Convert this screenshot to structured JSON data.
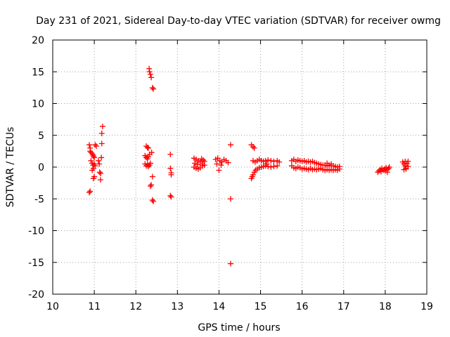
{
  "chart_data": {
    "type": "scatter",
    "title": "Day 231 of 2021, Sidereal Day-to-day VTEC variation (SDTVAR) for receiver owmg",
    "xlabel": "GPS time / hours",
    "ylabel": "SDTVAR / TECUs",
    "xlim": [
      10,
      19
    ],
    "ylim": [
      -20,
      20
    ],
    "xticks": [
      10,
      11,
      12,
      13,
      14,
      15,
      16,
      17,
      18,
      19
    ],
    "yticks": [
      -20,
      -15,
      -10,
      -5,
      0,
      5,
      10,
      15,
      20
    ],
    "grid": true,
    "marker": "+",
    "color": "#ff0000",
    "series": [
      {
        "name": "SDTVAR",
        "points": [
          [
            10.88,
            -4.0
          ],
          [
            10.9,
            -3.8
          ],
          [
            10.88,
            3.5
          ],
          [
            10.9,
            3.0
          ],
          [
            10.9,
            2.5
          ],
          [
            10.92,
            2.3
          ],
          [
            10.95,
            2.1
          ],
          [
            10.97,
            1.9
          ],
          [
            10.98,
            1.7
          ],
          [
            11.0,
            1.5
          ],
          [
            10.92,
            1.0
          ],
          [
            10.95,
            0.6
          ],
          [
            10.97,
            0.3
          ],
          [
            10.98,
            -0.2
          ],
          [
            11.0,
            0.5
          ],
          [
            11.02,
            0.2
          ],
          [
            10.95,
            -0.5
          ],
          [
            10.98,
            -1.8
          ],
          [
            11.0,
            -1.5
          ],
          [
            11.02,
            3.5
          ],
          [
            11.05,
            3.3
          ],
          [
            11.1,
            1.0
          ],
          [
            11.12,
            0.5
          ],
          [
            11.13,
            -0.8
          ],
          [
            11.15,
            -1.0
          ],
          [
            11.15,
            -2.0
          ],
          [
            11.17,
            1.5
          ],
          [
            11.18,
            3.7
          ],
          [
            11.18,
            5.3
          ],
          [
            11.2,
            6.4
          ],
          [
            12.25,
            3.3
          ],
          [
            12.28,
            3.1
          ],
          [
            12.3,
            3.0
          ],
          [
            12.22,
            1.8
          ],
          [
            12.25,
            1.5
          ],
          [
            12.28,
            1.3
          ],
          [
            12.3,
            1.6
          ],
          [
            12.33,
            2.0
          ],
          [
            12.38,
            2.3
          ],
          [
            12.22,
            0.5
          ],
          [
            12.25,
            0.2
          ],
          [
            12.28,
            0.4
          ],
          [
            12.3,
            0.1
          ],
          [
            12.33,
            0.3
          ],
          [
            12.35,
            0.6
          ],
          [
            12.35,
            -3.0
          ],
          [
            12.37,
            -2.8
          ],
          [
            12.4,
            -1.5
          ],
          [
            12.4,
            -5.2
          ],
          [
            12.42,
            -5.4
          ],
          [
            12.32,
            15.5
          ],
          [
            12.33,
            15.0
          ],
          [
            12.35,
            14.6
          ],
          [
            12.37,
            14.1
          ],
          [
            12.4,
            12.5
          ],
          [
            12.42,
            12.3
          ],
          [
            12.83,
            2.0
          ],
          [
            12.83,
            -0.2
          ],
          [
            12.85,
            -0.9
          ],
          [
            12.85,
            -1.2
          ],
          [
            12.83,
            -4.5
          ],
          [
            12.85,
            -4.7
          ],
          [
            13.4,
            1.4
          ],
          [
            13.45,
            1.2
          ],
          [
            13.5,
            1.0
          ],
          [
            13.55,
            0.8
          ],
          [
            13.6,
            0.5
          ],
          [
            13.65,
            0.3
          ],
          [
            13.4,
            0.0
          ],
          [
            13.45,
            -0.2
          ],
          [
            13.5,
            -0.3
          ],
          [
            13.55,
            -0.1
          ],
          [
            13.6,
            0.2
          ],
          [
            13.65,
            0.9
          ],
          [
            13.42,
            0.6
          ],
          [
            13.48,
            0.4
          ],
          [
            13.58,
            1.3
          ],
          [
            13.62,
            1.1
          ],
          [
            13.92,
            1.2
          ],
          [
            13.97,
            1.4
          ],
          [
            14.02,
            1.0
          ],
          [
            14.07,
            0.8
          ],
          [
            14.12,
            1.2
          ],
          [
            14.17,
            1.0
          ],
          [
            14.22,
            0.7
          ],
          [
            13.95,
            0.5
          ],
          [
            14.05,
            0.3
          ],
          [
            14.0,
            -0.5
          ],
          [
            14.28,
            3.5
          ],
          [
            14.28,
            -5.0
          ],
          [
            14.28,
            -15.2
          ],
          [
            14.78,
            3.5
          ],
          [
            14.82,
            3.2
          ],
          [
            14.85,
            3.0
          ],
          [
            14.78,
            -1.8
          ],
          [
            14.8,
            -1.5
          ],
          [
            14.82,
            -1.2
          ],
          [
            14.85,
            -0.8
          ],
          [
            14.88,
            -0.5
          ],
          [
            14.92,
            -0.3
          ],
          [
            14.97,
            -0.1
          ],
          [
            15.02,
            0.0
          ],
          [
            15.07,
            0.1
          ],
          [
            15.12,
            0.2
          ],
          [
            15.18,
            0.1
          ],
          [
            15.25,
            0.0
          ],
          [
            15.32,
            0.1
          ],
          [
            15.4,
            0.2
          ],
          [
            14.82,
            1.0
          ],
          [
            14.87,
            0.8
          ],
          [
            14.92,
            1.0
          ],
          [
            14.97,
            1.2
          ],
          [
            15.02,
            1.0
          ],
          [
            15.07,
            0.9
          ],
          [
            15.12,
            1.0
          ],
          [
            15.18,
            1.1
          ],
          [
            15.25,
            1.0
          ],
          [
            15.32,
            0.9
          ],
          [
            15.4,
            1.0
          ],
          [
            15.45,
            0.8
          ],
          [
            15.15,
            0.5
          ],
          [
            15.75,
            1.0
          ],
          [
            15.8,
            1.2
          ],
          [
            15.85,
            0.9
          ],
          [
            15.9,
            1.1
          ],
          [
            15.95,
            1.0
          ],
          [
            16.0,
            0.9
          ],
          [
            16.05,
            1.0
          ],
          [
            16.1,
            0.8
          ],
          [
            16.15,
            0.9
          ],
          [
            16.2,
            0.8
          ],
          [
            16.25,
            0.9
          ],
          [
            16.3,
            0.7
          ],
          [
            16.35,
            0.6
          ],
          [
            16.4,
            0.5
          ],
          [
            16.45,
            0.4
          ],
          [
            16.5,
            0.3
          ],
          [
            16.55,
            0.3
          ],
          [
            16.6,
            0.2
          ],
          [
            16.65,
            0.3
          ],
          [
            16.7,
            0.2
          ],
          [
            16.75,
            0.2
          ],
          [
            16.8,
            0.1
          ],
          [
            16.85,
            0.0
          ],
          [
            16.9,
            0.1
          ],
          [
            15.75,
            0.2
          ],
          [
            15.8,
            -0.1
          ],
          [
            15.85,
            -0.2
          ],
          [
            15.9,
            0.0
          ],
          [
            15.95,
            -0.1
          ],
          [
            16.0,
            -0.3
          ],
          [
            16.05,
            -0.2
          ],
          [
            16.1,
            -0.3
          ],
          [
            16.15,
            -0.4
          ],
          [
            16.2,
            -0.2
          ],
          [
            16.25,
            -0.4
          ],
          [
            16.3,
            -0.3
          ],
          [
            16.35,
            -0.4
          ],
          [
            16.4,
            -0.3
          ],
          [
            16.45,
            -0.2
          ],
          [
            16.5,
            -0.4
          ],
          [
            16.55,
            -0.5
          ],
          [
            16.6,
            -0.4
          ],
          [
            16.65,
            -0.5
          ],
          [
            16.7,
            -0.4
          ],
          [
            16.75,
            -0.5
          ],
          [
            16.8,
            -0.4
          ],
          [
            16.85,
            -0.5
          ],
          [
            16.9,
            -0.3
          ],
          [
            16.6,
            0.6
          ],
          [
            16.7,
            0.5
          ],
          [
            17.82,
            -0.8
          ],
          [
            17.85,
            -0.6
          ],
          [
            17.88,
            -0.4
          ],
          [
            17.92,
            -0.2
          ],
          [
            17.95,
            -0.5
          ],
          [
            17.98,
            -0.3
          ],
          [
            18.02,
            -0.1
          ],
          [
            18.05,
            -0.4
          ],
          [
            18.08,
            -0.2
          ],
          [
            18.1,
            0.0
          ],
          [
            17.9,
            -0.7
          ],
          [
            18.0,
            -0.6
          ],
          [
            18.05,
            -0.8
          ],
          [
            18.42,
            0.8
          ],
          [
            18.45,
            0.5
          ],
          [
            18.48,
            0.2
          ],
          [
            18.5,
            -0.2
          ],
          [
            18.52,
            0.6
          ],
          [
            18.55,
            0.1
          ],
          [
            18.45,
            -0.4
          ],
          [
            18.5,
            -0.3
          ],
          [
            18.55,
            0.9
          ],
          [
            18.48,
            0.9
          ]
        ]
      }
    ]
  }
}
